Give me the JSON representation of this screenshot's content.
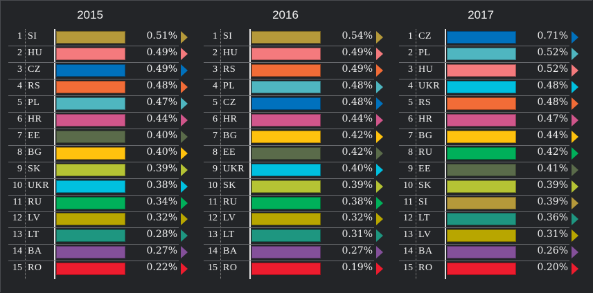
{
  "chart_data": {
    "type": "table",
    "panels": [
      {
        "title": "2015",
        "rows": [
          {
            "rank": "1",
            "code": "SI",
            "value": "0.51%",
            "color": "#b5993a"
          },
          {
            "rank": "2",
            "code": "HU",
            "value": "0.49%",
            "color": "#f47a7d"
          },
          {
            "rank": "3",
            "code": "CZ",
            "value": "0.49%",
            "color": "#0071bd"
          },
          {
            "rank": "4",
            "code": "RS",
            "value": "0.48%",
            "color": "#f26c37"
          },
          {
            "rank": "5",
            "code": "PL",
            "value": "0.47%",
            "color": "#4fb6c0"
          },
          {
            "rank": "6",
            "code": "HR",
            "value": "0.44%",
            "color": "#d1568b"
          },
          {
            "rank": "7",
            "code": "EE",
            "value": "0.40%",
            "color": "#5a6b4a"
          },
          {
            "rank": "8",
            "code": "BG",
            "value": "0.40%",
            "color": "#ffc20e"
          },
          {
            "rank": "9",
            "code": "SK",
            "value": "0.39%",
            "color": "#b5c334"
          },
          {
            "rank": "10",
            "code": "UKR",
            "value": "0.38%",
            "color": "#00c0e0"
          },
          {
            "rank": "11",
            "code": "RU",
            "value": "0.34%",
            "color": "#00b05a"
          },
          {
            "rank": "12",
            "code": "LV",
            "value": "0.32%",
            "color": "#b8a600"
          },
          {
            "rank": "13",
            "code": "LT",
            "value": "0.28%",
            "color": "#1e9680"
          },
          {
            "rank": "14",
            "code": "BA",
            "value": "0.27%",
            "color": "#84509a"
          },
          {
            "rank": "15",
            "code": "RO",
            "value": "0.22%",
            "color": "#ed1c2e"
          }
        ]
      },
      {
        "title": "2016",
        "rows": [
          {
            "rank": "1",
            "code": "SI",
            "value": "0.54%",
            "color": "#b5993a"
          },
          {
            "rank": "2",
            "code": "HU",
            "value": "0.49%",
            "color": "#f47a7d"
          },
          {
            "rank": "3",
            "code": "RS",
            "value": "0.49%",
            "color": "#f26c37"
          },
          {
            "rank": "4",
            "code": "PL",
            "value": "0.48%",
            "color": "#4fb6c0"
          },
          {
            "rank": "5",
            "code": "CZ",
            "value": "0.48%",
            "color": "#0071bd"
          },
          {
            "rank": "6",
            "code": "HR",
            "value": "0.44%",
            "color": "#d1568b"
          },
          {
            "rank": "7",
            "code": "BG",
            "value": "0.42%",
            "color": "#ffc20e"
          },
          {
            "rank": "8",
            "code": "EE",
            "value": "0.42%",
            "color": "#5a6b4a"
          },
          {
            "rank": "9",
            "code": "UKR",
            "value": "0.40%",
            "color": "#00c0e0"
          },
          {
            "rank": "10",
            "code": "SK",
            "value": "0.39%",
            "color": "#b5c334"
          },
          {
            "rank": "11",
            "code": "RU",
            "value": "0.38%",
            "color": "#00b05a"
          },
          {
            "rank": "12",
            "code": "LV",
            "value": "0.32%",
            "color": "#b8a600"
          },
          {
            "rank": "13",
            "code": "LT",
            "value": "0.31%",
            "color": "#1e9680"
          },
          {
            "rank": "14",
            "code": "BA",
            "value": "0.27%",
            "color": "#84509a"
          },
          {
            "rank": "15",
            "code": "RO",
            "value": "0.19%",
            "color": "#ed1c2e"
          }
        ]
      },
      {
        "title": "2017",
        "rows": [
          {
            "rank": "1",
            "code": "CZ",
            "value": "0.71%",
            "color": "#0071bd"
          },
          {
            "rank": "2",
            "code": "PL",
            "value": "0.52%",
            "color": "#4fb6c0"
          },
          {
            "rank": "3",
            "code": "HU",
            "value": "0.52%",
            "color": "#f47a7d"
          },
          {
            "rank": "4",
            "code": "UKR",
            "value": "0.48%",
            "color": "#00c0e0"
          },
          {
            "rank": "5",
            "code": "RS",
            "value": "0.48%",
            "color": "#f26c37"
          },
          {
            "rank": "6",
            "code": "HR",
            "value": "0.47%",
            "color": "#d1568b"
          },
          {
            "rank": "7",
            "code": "BG",
            "value": "0.44%",
            "color": "#ffc20e"
          },
          {
            "rank": "8",
            "code": "RU",
            "value": "0.42%",
            "color": "#00b05a"
          },
          {
            "rank": "9",
            "code": "EE",
            "value": "0.41%",
            "color": "#5a6b4a"
          },
          {
            "rank": "10",
            "code": "SK",
            "value": "0.39%",
            "color": "#b5c334"
          },
          {
            "rank": "11",
            "code": "SI",
            "value": "0.39%",
            "color": "#b5993a"
          },
          {
            "rank": "12",
            "code": "LT",
            "value": "0.36%",
            "color": "#1e9680"
          },
          {
            "rank": "13",
            "code": "LV",
            "value": "0.31%",
            "color": "#b8a600"
          },
          {
            "rank": "14",
            "code": "BA",
            "value": "0.26%",
            "color": "#84509a"
          },
          {
            "rank": "15",
            "code": "RO",
            "value": "0.20%",
            "color": "#ed1c2e"
          }
        ]
      }
    ]
  }
}
